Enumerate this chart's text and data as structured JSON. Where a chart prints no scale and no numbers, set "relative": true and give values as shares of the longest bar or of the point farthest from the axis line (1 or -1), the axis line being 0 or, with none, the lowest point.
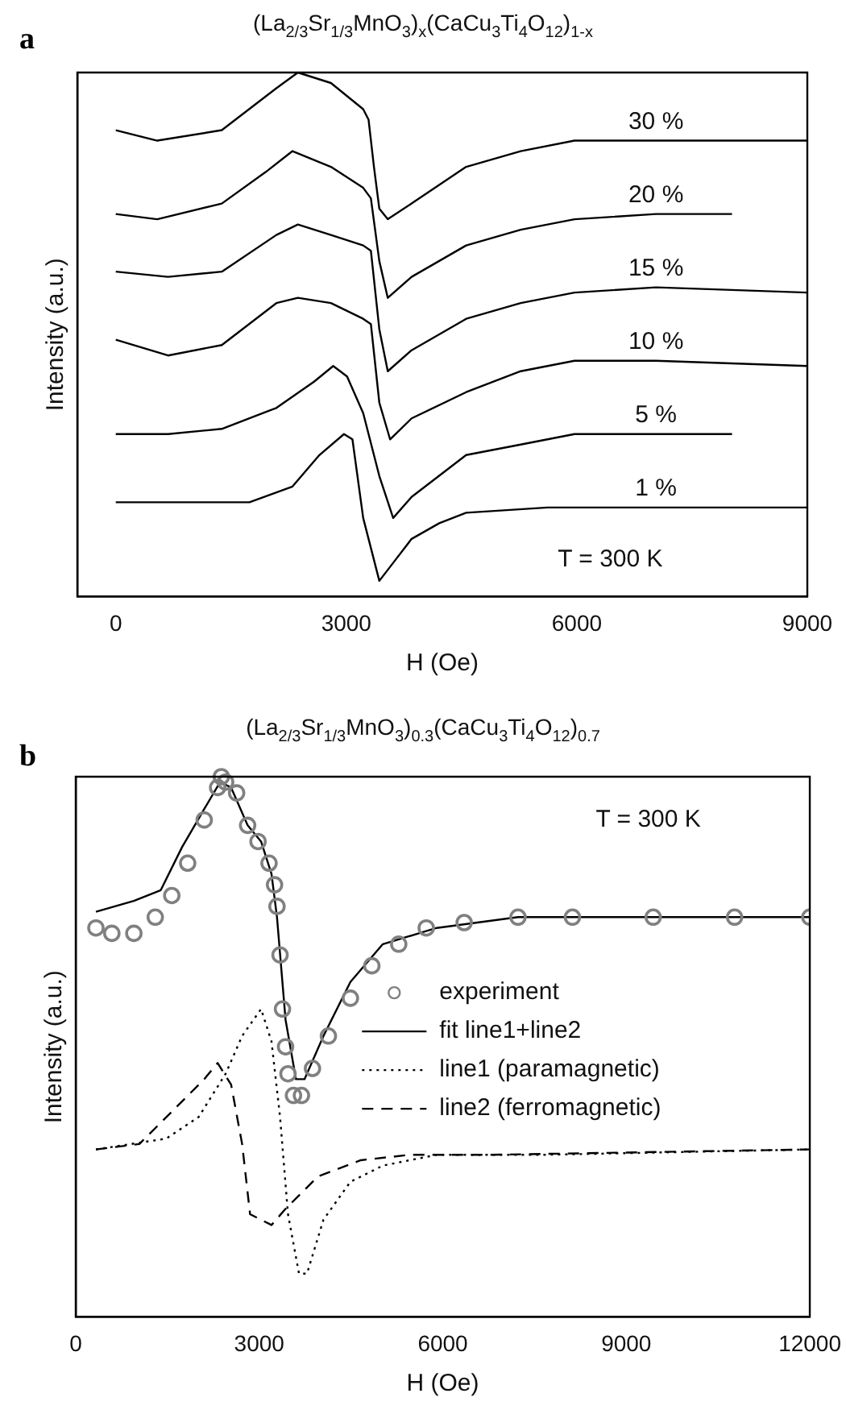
{
  "chart_data": [
    {
      "type": "line",
      "title": "(La$_{2/3}$Sr$_{1/3}$MnO$_{3}$)$_{x}$(CaCu$_{3}$Ti$_{4}$O$_{12}$)$_{1-x}$",
      "xlabel": "H (Oe)",
      "ylabel": "Intensity (a.u.)",
      "relative": true,
      "xlim": [
        -500,
        9000
      ],
      "xticks": [
        0,
        3000,
        6000,
        9000
      ],
      "grid": false,
      "legend": false,
      "line_style": "solid",
      "annotations": [
        "a",
        "T = 300 K"
      ],
      "series": [
        {
          "name": "30 %",
          "color": "#000000",
          "x": [
            0,
            540,
            1380,
            2090,
            2370,
            2800,
            3220,
            3290,
            3360,
            3430,
            3540,
            3850,
            4560,
            5270,
            5970,
            7030,
            9000
          ],
          "values": [
            0.89,
            0.87,
            0.89,
            0.97,
            1,
            0.98,
            0.93,
            0.91,
            0.82,
            0.74,
            0.72,
            0.75,
            0.82,
            0.85,
            0.87,
            0.87,
            0.87
          ]
        },
        {
          "name": "20 %",
          "color": "#000000",
          "x": [
            0,
            540,
            1380,
            1950,
            2300,
            2800,
            3220,
            3320,
            3430,
            3540,
            3850,
            4560,
            5270,
            5970,
            7030,
            8020
          ],
          "values": [
            0.73,
            0.72,
            0.75,
            0.81,
            0.85,
            0.82,
            0.78,
            0.76,
            0.64,
            0.57,
            0.61,
            0.67,
            0.7,
            0.72,
            0.73,
            0.73
          ]
        },
        {
          "name": "15 %",
          "color": "#000000",
          "x": [
            0,
            680,
            1380,
            2090,
            2370,
            2800,
            3220,
            3320,
            3430,
            3540,
            3850,
            4560,
            5270,
            5970,
            7030,
            9000
          ],
          "values": [
            0.62,
            0.61,
            0.62,
            0.69,
            0.71,
            0.69,
            0.67,
            0.66,
            0.51,
            0.43,
            0.47,
            0.53,
            0.56,
            0.58,
            0.59,
            0.58
          ]
        },
        {
          "name": "10 %",
          "color": "#000000",
          "x": [
            0,
            680,
            1380,
            2090,
            2370,
            2800,
            3220,
            3320,
            3430,
            3570,
            3850,
            4560,
            5270,
            5970,
            7030,
            9000
          ],
          "values": [
            0.49,
            0.46,
            0.48,
            0.56,
            0.57,
            0.56,
            0.53,
            0.52,
            0.37,
            0.3,
            0.34,
            0.39,
            0.43,
            0.45,
            0.45,
            0.44
          ]
        },
        {
          "name": "5 %",
          "color": "#000000",
          "x": [
            0,
            680,
            1380,
            2090,
            2580,
            2830,
            3010,
            3220,
            3430,
            3610,
            3850,
            4560,
            5270,
            5970,
            7030,
            8020
          ],
          "values": [
            0.31,
            0.31,
            0.32,
            0.36,
            0.41,
            0.44,
            0.42,
            0.35,
            0.23,
            0.15,
            0.19,
            0.27,
            0.29,
            0.31,
            0.31,
            0.31
          ]
        },
        {
          "name": "1 %",
          "color": "#000000",
          "x": [
            0,
            1740,
            2300,
            2650,
            2970,
            3080,
            3220,
            3430,
            3640,
            3850,
            4210,
            4560,
            5620,
            7030,
            9000
          ],
          "values": [
            0.18,
            0.18,
            0.21,
            0.27,
            0.31,
            0.3,
            0.15,
            0.03,
            0.07,
            0.11,
            0.14,
            0.16,
            0.17,
            0.17,
            0.17
          ]
        }
      ]
    },
    {
      "type": "line",
      "title": "(La$_{2/3}$Sr$_{1/3}$MnO$_{3}$)$_{0.3}$(CaCu$_{3}$Ti$_{4}$O$_{12}$)$_{0.7}$",
      "xlabel": "H (Oe)",
      "ylabel": "Intensity (a.u.)",
      "relative": true,
      "xlim": [
        0,
        12000
      ],
      "xticks": [
        0,
        3000,
        6000,
        9000,
        12000
      ],
      "grid": false,
      "legend": "right",
      "annotations": [
        "b",
        "T = 300 K"
      ],
      "series": [
        {
          "name": "experiment",
          "type": "scatter",
          "marker": "circle",
          "color": "#808080",
          "x": [
            330,
            590,
            950,
            1300,
            1570,
            1830,
            2100,
            2320,
            2380,
            2450,
            2630,
            2810,
            2980,
            3160,
            3250,
            3290,
            3340,
            3380,
            3430,
            3470,
            3560,
            3690,
            3870,
            4130,
            4490,
            4840,
            5280,
            5730,
            6350,
            7230,
            8120,
            9440,
            10770,
            12000
          ],
          "values": [
            0.72,
            0.71,
            0.71,
            0.74,
            0.78,
            0.84,
            0.92,
            0.98,
            1,
            0.99,
            0.97,
            0.91,
            0.88,
            0.84,
            0.8,
            0.76,
            0.67,
            0.57,
            0.5,
            0.45,
            0.41,
            0.41,
            0.46,
            0.52,
            0.59,
            0.65,
            0.69,
            0.72,
            0.73,
            0.74,
            0.74,
            0.74,
            0.74,
            0.74
          ]
        },
        {
          "name": "fit line1+line2",
          "line_style": "solid",
          "color": "#000000",
          "x": [
            330,
            950,
            1390,
            1740,
            2100,
            2360,
            2540,
            2810,
            3030,
            3200,
            3290,
            3430,
            3600,
            3740,
            4050,
            4490,
            5020,
            5900,
            7230,
            9440,
            12000
          ],
          "values": [
            0.75,
            0.77,
            0.79,
            0.87,
            0.94,
            0.99,
            0.98,
            0.91,
            0.88,
            0.82,
            0.74,
            0.55,
            0.44,
            0.44,
            0.52,
            0.62,
            0.69,
            0.72,
            0.74,
            0.74,
            0.74
          ]
        },
        {
          "name": "line1 (paramagnetic)",
          "line_style": "dotted",
          "color": "#000000",
          "x": [
            330,
            1480,
            2010,
            2450,
            2720,
            3030,
            3200,
            3340,
            3470,
            3650,
            3780,
            4050,
            4490,
            5020,
            5900,
            7670,
            12000
          ],
          "values": [
            0.31,
            0.33,
            0.37,
            0.45,
            0.52,
            0.57,
            0.51,
            0.37,
            0.19,
            0.08,
            0.08,
            0.18,
            0.25,
            0.28,
            0.3,
            0.3,
            0.31
          ]
        },
        {
          "name": "line2 (ferromagnetic)",
          "line_style": "dashed",
          "color": "#000000",
          "x": [
            330,
            1040,
            1660,
            2100,
            2320,
            2540,
            2720,
            2850,
            3200,
            3430,
            3960,
            4660,
            5460,
            6790,
            12000
          ],
          "values": [
            0.31,
            0.32,
            0.39,
            0.44,
            0.47,
            0.43,
            0.32,
            0.19,
            0.17,
            0.2,
            0.26,
            0.29,
            0.3,
            0.3,
            0.31
          ]
        }
      ]
    }
  ]
}
